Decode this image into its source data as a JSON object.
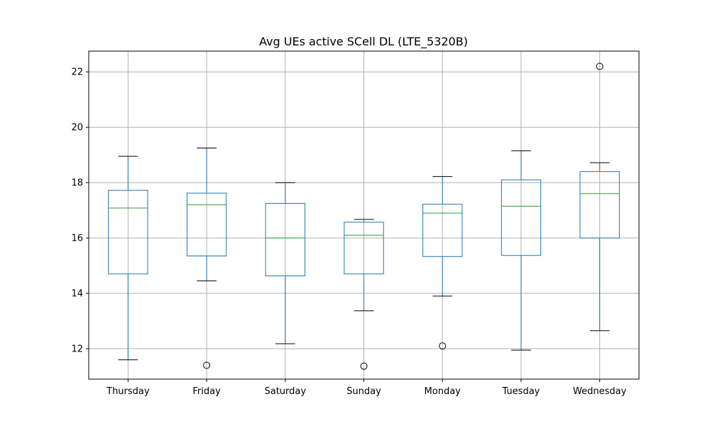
{
  "chart_data": {
    "type": "boxplot",
    "title": "Avg UEs active SCell DL (LTE_5320B)",
    "xlabel": "",
    "ylabel": "",
    "ylim": [
      10.9,
      22.75
    ],
    "yticks": [
      12,
      14,
      16,
      18,
      20,
      22
    ],
    "grid": true,
    "colors": {
      "box": "#1f77b4",
      "median": "#2ca02c",
      "whisker_cap": "#000000",
      "grid": "#b0b0b0"
    },
    "categories": [
      "Thursday",
      "Friday",
      "Saturday",
      "Sunday",
      "Monday",
      "Tuesday",
      "Wednesday"
    ],
    "boxes": [
      {
        "label": "Thursday",
        "whislo": 11.6,
        "q1": 14.7,
        "med": 17.08,
        "q3": 17.72,
        "whishi": 18.95,
        "fliers": []
      },
      {
        "label": "Friday",
        "whislo": 14.45,
        "q1": 15.35,
        "med": 17.2,
        "q3": 17.62,
        "whishi": 19.25,
        "fliers": [
          11.4
        ]
      },
      {
        "label": "Saturday",
        "whislo": 12.18,
        "q1": 14.63,
        "med": 16.0,
        "q3": 17.25,
        "whishi": 18.0,
        "fliers": []
      },
      {
        "label": "Sunday",
        "whislo": 13.37,
        "q1": 14.7,
        "med": 16.1,
        "q3": 16.57,
        "whishi": 16.67,
        "fliers": [
          11.37
        ]
      },
      {
        "label": "Monday",
        "whislo": 13.9,
        "q1": 15.33,
        "med": 16.9,
        "q3": 17.22,
        "whishi": 18.22,
        "fliers": [
          12.1
        ]
      },
      {
        "label": "Tuesday",
        "whislo": 11.95,
        "q1": 15.37,
        "med": 17.15,
        "q3": 18.1,
        "whishi": 19.15,
        "fliers": []
      },
      {
        "label": "Wednesday",
        "whislo": 12.65,
        "q1": 16.0,
        "med": 17.6,
        "q3": 18.4,
        "whishi": 18.72,
        "fliers": [
          22.2
        ]
      }
    ]
  }
}
